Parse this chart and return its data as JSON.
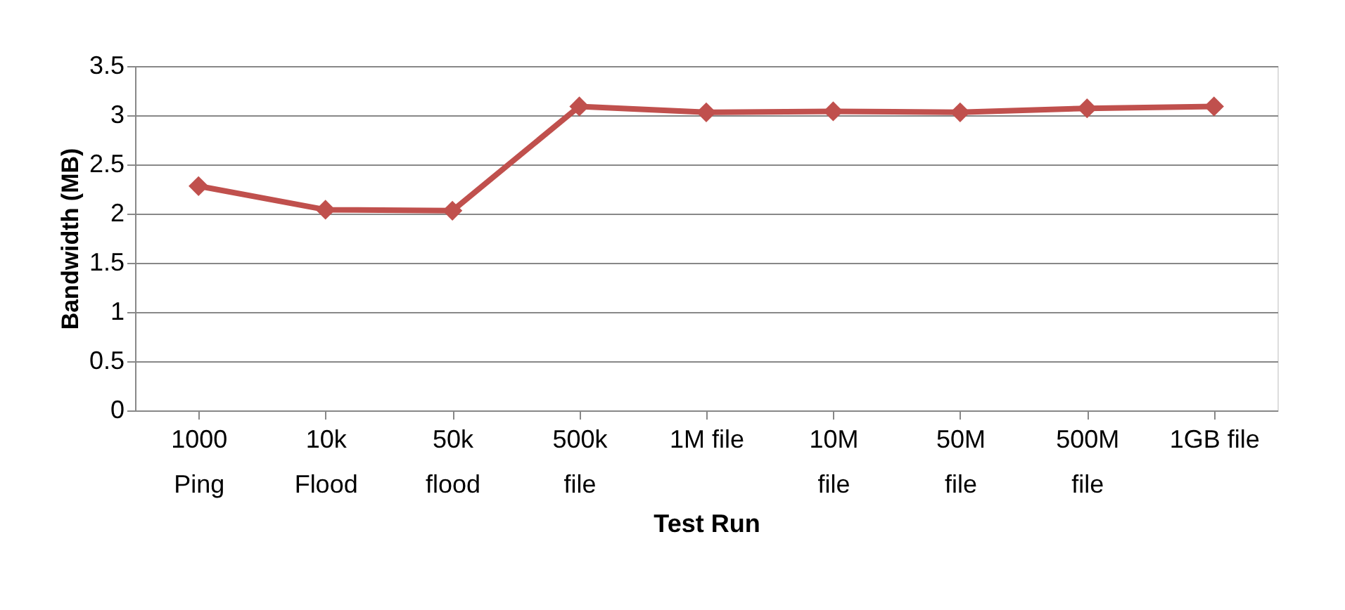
{
  "chart_data": {
    "type": "line",
    "xlabel": "Test Run",
    "ylabel": "Bandwidth (MB)",
    "categories": [
      "1000\nPing",
      "10k\nFlood",
      "50k\nflood",
      "500k\nfile",
      "1M file",
      "10M\nfile",
      "50M\nfile",
      "500M\nfile",
      "1GB file"
    ],
    "series": [
      {
        "color": "#c0504d",
        "values": [
          2.28,
          2.04,
          2.03,
          3.09,
          3.03,
          3.04,
          3.03,
          3.07,
          3.09
        ]
      }
    ],
    "ylim": [
      0,
      3.5
    ],
    "yticks": [
      0,
      0.5,
      1,
      1.5,
      2,
      2.5,
      3,
      3.5
    ],
    "grid": "y",
    "legend": false,
    "marker": "diamond",
    "line_style": "solid"
  }
}
